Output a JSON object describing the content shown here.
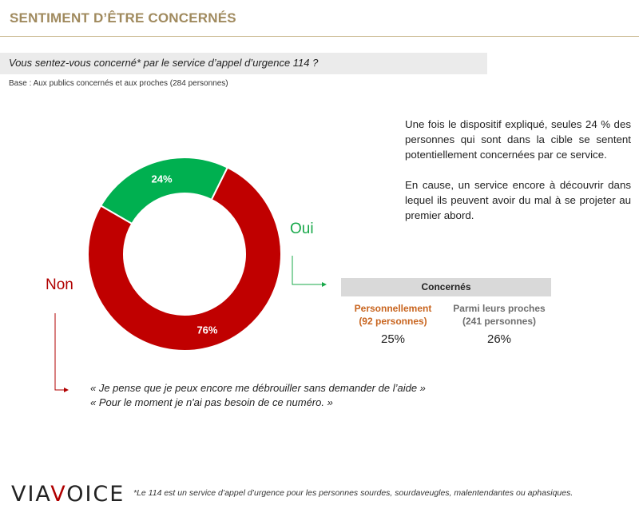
{
  "header": {
    "title": "SENTIMENT D’ÊTRE CONCERNÉS"
  },
  "question": {
    "text": "Vous sentez-vous concerné* par le service d’appel d’urgence 114 ?",
    "base": "Base : Aux publics concernés et aux proches (284 personnes)"
  },
  "chart_data": {
    "type": "pie",
    "variant": "donut",
    "categories": [
      "Non",
      "Oui"
    ],
    "values": [
      76,
      24
    ],
    "value_labels": [
      "76%",
      "24%"
    ],
    "colors": [
      "#c00000",
      "#00b050"
    ]
  },
  "explanation": {
    "paragraph_1": "Une fois le dispositif expliqué, seules 24 % des personnes qui sont dans la cible se sentent potentiellement concernées par ce service.",
    "paragraph_2": "En cause, un service encore à découvrir dans lequel ils peuvent avoir du mal à se projeter au premier abord."
  },
  "concernes": {
    "header": "Concernés",
    "columns": [
      {
        "label_line1": "Personnellement",
        "label_line2": "(92 personnes)",
        "value": "25%"
      },
      {
        "label_line1": "Parmi leurs proches",
        "label_line2": "(241 personnes)",
        "value": "26%"
      }
    ]
  },
  "quotes": [
    "« Je pense que je peux encore me débrouiller sans demander de l’aide »",
    "« Pour le moment je n'ai pas besoin de ce numéro. »"
  ],
  "footer": {
    "logo_left": "VIA",
    "logo_v": "V",
    "logo_right": "OICE",
    "footnote": "*Le 114 est un service d’appel d’urgence pour les personnes sourdes, sourdaveugles, malentendantes ou aphasiques."
  }
}
